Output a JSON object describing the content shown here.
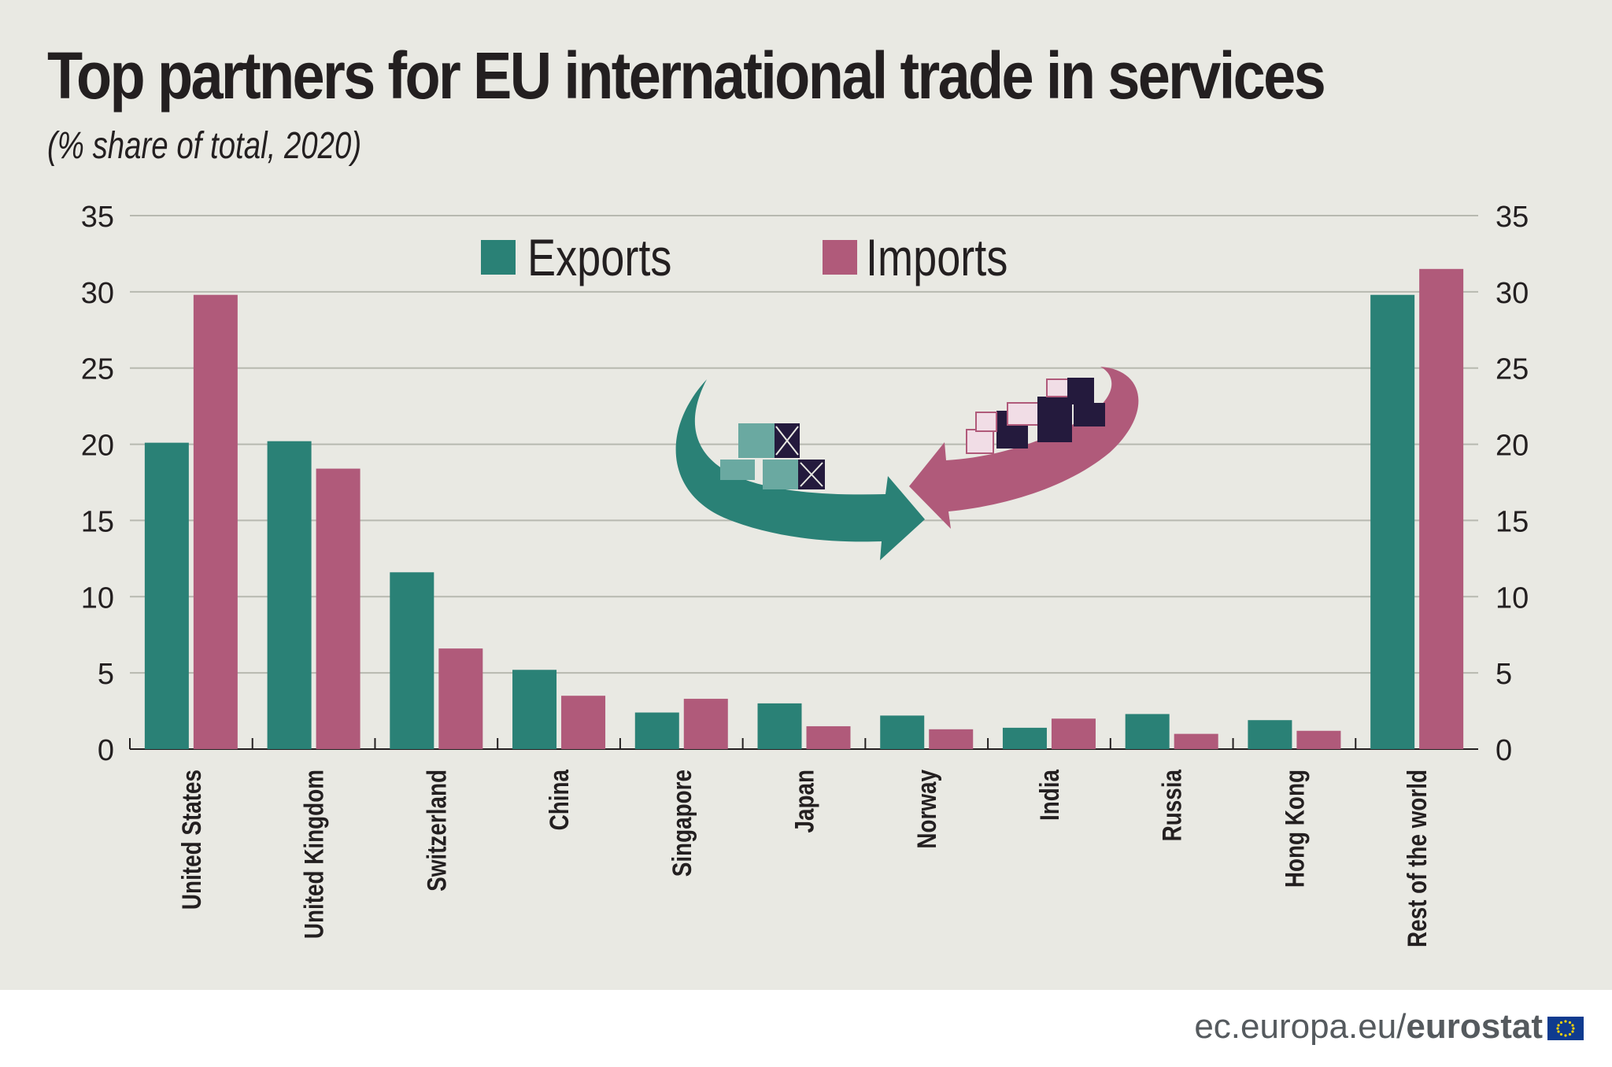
{
  "title": "Top partners for EU international trade in services",
  "subtitle": "(% share of total, 2020)",
  "footer": {
    "site": "ec.europa.eu/",
    "brand": "eurostat"
  },
  "colors": {
    "exports": "#2a8176",
    "imports": "#b05a7a",
    "background": "#e9e9e3",
    "grid": "#b7b9b0",
    "text": "#231f20"
  },
  "icons": [
    "trade-arrows-illustration",
    "eu-flag-icon"
  ],
  "chart_data": {
    "type": "bar",
    "categories": [
      "United States",
      "United Kingdom",
      "Switzerland",
      "China",
      "Singapore",
      "Japan",
      "Norway",
      "India",
      "Russia",
      "Hong Kong",
      "Rest of the world"
    ],
    "series": [
      {
        "name": "Exports",
        "values": [
          20.1,
          20.2,
          11.6,
          5.2,
          2.4,
          3.0,
          2.2,
          1.4,
          2.3,
          1.9,
          29.8
        ]
      },
      {
        "name": "Imports",
        "values": [
          29.8,
          18.4,
          6.6,
          3.5,
          3.3,
          1.5,
          1.3,
          2.0,
          1.0,
          1.2,
          31.5
        ]
      }
    ],
    "title": "Top partners for EU international trade in services",
    "subtitle": "(% share of total, 2020)",
    "ylim": [
      0,
      35
    ],
    "yticks": [
      0,
      5,
      10,
      15,
      20,
      25,
      30,
      35
    ],
    "grid": true,
    "legend": "top-center",
    "secondary_y_axis": true
  }
}
